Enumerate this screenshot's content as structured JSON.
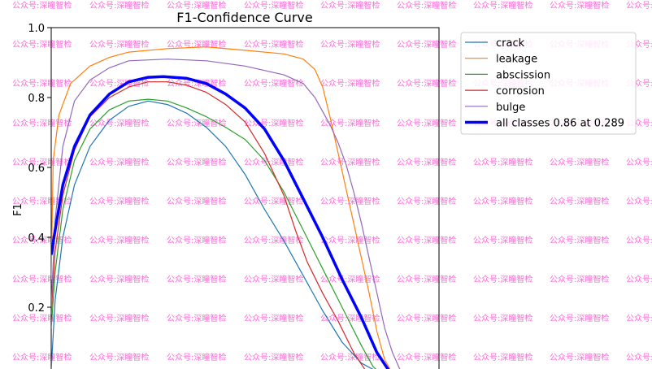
{
  "watermark_text": "公众号:深瞳智检",
  "chart_data": {
    "type": "line",
    "title": "F1-Confidence Curve",
    "xlabel": "",
    "ylabel": "F1",
    "xlim": [
      0,
      1
    ],
    "ylim": [
      0,
      1.0
    ],
    "yticks": [
      "0.2",
      "0.4",
      "0.6",
      "0.8",
      "1.0"
    ],
    "grid": false,
    "legend_position": "top-right",
    "series": [
      {
        "name": "crack",
        "color": "#1f77b4",
        "width": 1.2,
        "points": [
          [
            0,
            0.02
          ],
          [
            0.01,
            0.22
          ],
          [
            0.03,
            0.4
          ],
          [
            0.06,
            0.55
          ],
          [
            0.1,
            0.66
          ],
          [
            0.15,
            0.735
          ],
          [
            0.2,
            0.775
          ],
          [
            0.25,
            0.79
          ],
          [
            0.3,
            0.78
          ],
          [
            0.35,
            0.755
          ],
          [
            0.4,
            0.715
          ],
          [
            0.45,
            0.66
          ],
          [
            0.5,
            0.58
          ],
          [
            0.55,
            0.48
          ],
          [
            0.6,
            0.39
          ],
          [
            0.65,
            0.29
          ],
          [
            0.7,
            0.19
          ],
          [
            0.75,
            0.1
          ],
          [
            0.8,
            0.04
          ],
          [
            0.85,
            0.01
          ],
          [
            0.9,
            0.0
          ]
        ]
      },
      {
        "name": "leakage",
        "color": "#ff7f0e",
        "width": 1.2,
        "points": [
          [
            0,
            0.28
          ],
          [
            0.005,
            0.62
          ],
          [
            0.02,
            0.75
          ],
          [
            0.05,
            0.84
          ],
          [
            0.1,
            0.89
          ],
          [
            0.15,
            0.915
          ],
          [
            0.2,
            0.93
          ],
          [
            0.3,
            0.94
          ],
          [
            0.4,
            0.945
          ],
          [
            0.5,
            0.935
          ],
          [
            0.6,
            0.925
          ],
          [
            0.65,
            0.91
          ],
          [
            0.68,
            0.88
          ],
          [
            0.7,
            0.83
          ],
          [
            0.72,
            0.74
          ],
          [
            0.74,
            0.64
          ],
          [
            0.76,
            0.54
          ],
          [
            0.78,
            0.44
          ],
          [
            0.8,
            0.34
          ],
          [
            0.82,
            0.24
          ],
          [
            0.84,
            0.13
          ],
          [
            0.86,
            0.05
          ],
          [
            0.88,
            0.01
          ],
          [
            0.9,
            0.0
          ]
        ]
      },
      {
        "name": "abscission",
        "color": "#2ca02c",
        "width": 1.2,
        "points": [
          [
            0,
            0.14
          ],
          [
            0.01,
            0.3
          ],
          [
            0.03,
            0.48
          ],
          [
            0.06,
            0.62
          ],
          [
            0.1,
            0.71
          ],
          [
            0.15,
            0.765
          ],
          [
            0.2,
            0.79
          ],
          [
            0.25,
            0.795
          ],
          [
            0.3,
            0.79
          ],
          [
            0.35,
            0.77
          ],
          [
            0.4,
            0.745
          ],
          [
            0.45,
            0.715
          ],
          [
            0.5,
            0.68
          ],
          [
            0.55,
            0.62
          ],
          [
            0.6,
            0.53
          ],
          [
            0.65,
            0.42
          ],
          [
            0.7,
            0.31
          ],
          [
            0.75,
            0.2
          ],
          [
            0.8,
            0.09
          ],
          [
            0.83,
            0.03
          ],
          [
            0.85,
            0.01
          ],
          [
            0.87,
            0.0
          ]
        ]
      },
      {
        "name": "corrosion",
        "color": "#d62728",
        "width": 1.2,
        "points": [
          [
            0,
            0.18
          ],
          [
            0.01,
            0.36
          ],
          [
            0.03,
            0.52
          ],
          [
            0.06,
            0.65
          ],
          [
            0.1,
            0.745
          ],
          [
            0.15,
            0.8
          ],
          [
            0.2,
            0.83
          ],
          [
            0.25,
            0.845
          ],
          [
            0.3,
            0.845
          ],
          [
            0.35,
            0.835
          ],
          [
            0.4,
            0.815
          ],
          [
            0.45,
            0.78
          ],
          [
            0.5,
            0.73
          ],
          [
            0.55,
            0.64
          ],
          [
            0.6,
            0.52
          ],
          [
            0.63,
            0.42
          ],
          [
            0.66,
            0.33
          ],
          [
            0.7,
            0.24
          ],
          [
            0.74,
            0.16
          ],
          [
            0.78,
            0.07
          ],
          [
            0.81,
            0.02
          ],
          [
            0.84,
            0.0
          ]
        ]
      },
      {
        "name": "bulge",
        "color": "#9467bd",
        "width": 1.2,
        "points": [
          [
            0,
            0.2
          ],
          [
            0.01,
            0.45
          ],
          [
            0.03,
            0.66
          ],
          [
            0.06,
            0.79
          ],
          [
            0.1,
            0.85
          ],
          [
            0.15,
            0.885
          ],
          [
            0.2,
            0.905
          ],
          [
            0.3,
            0.91
          ],
          [
            0.4,
            0.905
          ],
          [
            0.5,
            0.89
          ],
          [
            0.6,
            0.865
          ],
          [
            0.65,
            0.84
          ],
          [
            0.68,
            0.8
          ],
          [
            0.7,
            0.76
          ],
          [
            0.72,
            0.72
          ],
          [
            0.74,
            0.67
          ],
          [
            0.76,
            0.61
          ],
          [
            0.78,
            0.53
          ],
          [
            0.8,
            0.44
          ],
          [
            0.82,
            0.34
          ],
          [
            0.84,
            0.24
          ],
          [
            0.86,
            0.14
          ],
          [
            0.88,
            0.07
          ],
          [
            0.9,
            0.02
          ],
          [
            0.92,
            0.0
          ]
        ]
      },
      {
        "name": "all classes 0.86 at 0.289",
        "color": "#0000ff",
        "width": 3.5,
        "points": [
          [
            0,
            0.35
          ],
          [
            0.01,
            0.42
          ],
          [
            0.03,
            0.55
          ],
          [
            0.06,
            0.66
          ],
          [
            0.1,
            0.75
          ],
          [
            0.15,
            0.81
          ],
          [
            0.2,
            0.845
          ],
          [
            0.25,
            0.858
          ],
          [
            0.289,
            0.86
          ],
          [
            0.35,
            0.855
          ],
          [
            0.4,
            0.84
          ],
          [
            0.45,
            0.81
          ],
          [
            0.5,
            0.77
          ],
          [
            0.55,
            0.71
          ],
          [
            0.6,
            0.62
          ],
          [
            0.65,
            0.51
          ],
          [
            0.7,
            0.4
          ],
          [
            0.75,
            0.28
          ],
          [
            0.8,
            0.17
          ],
          [
            0.84,
            0.07
          ],
          [
            0.87,
            0.02
          ],
          [
            0.9,
            0.0
          ]
        ]
      }
    ]
  }
}
